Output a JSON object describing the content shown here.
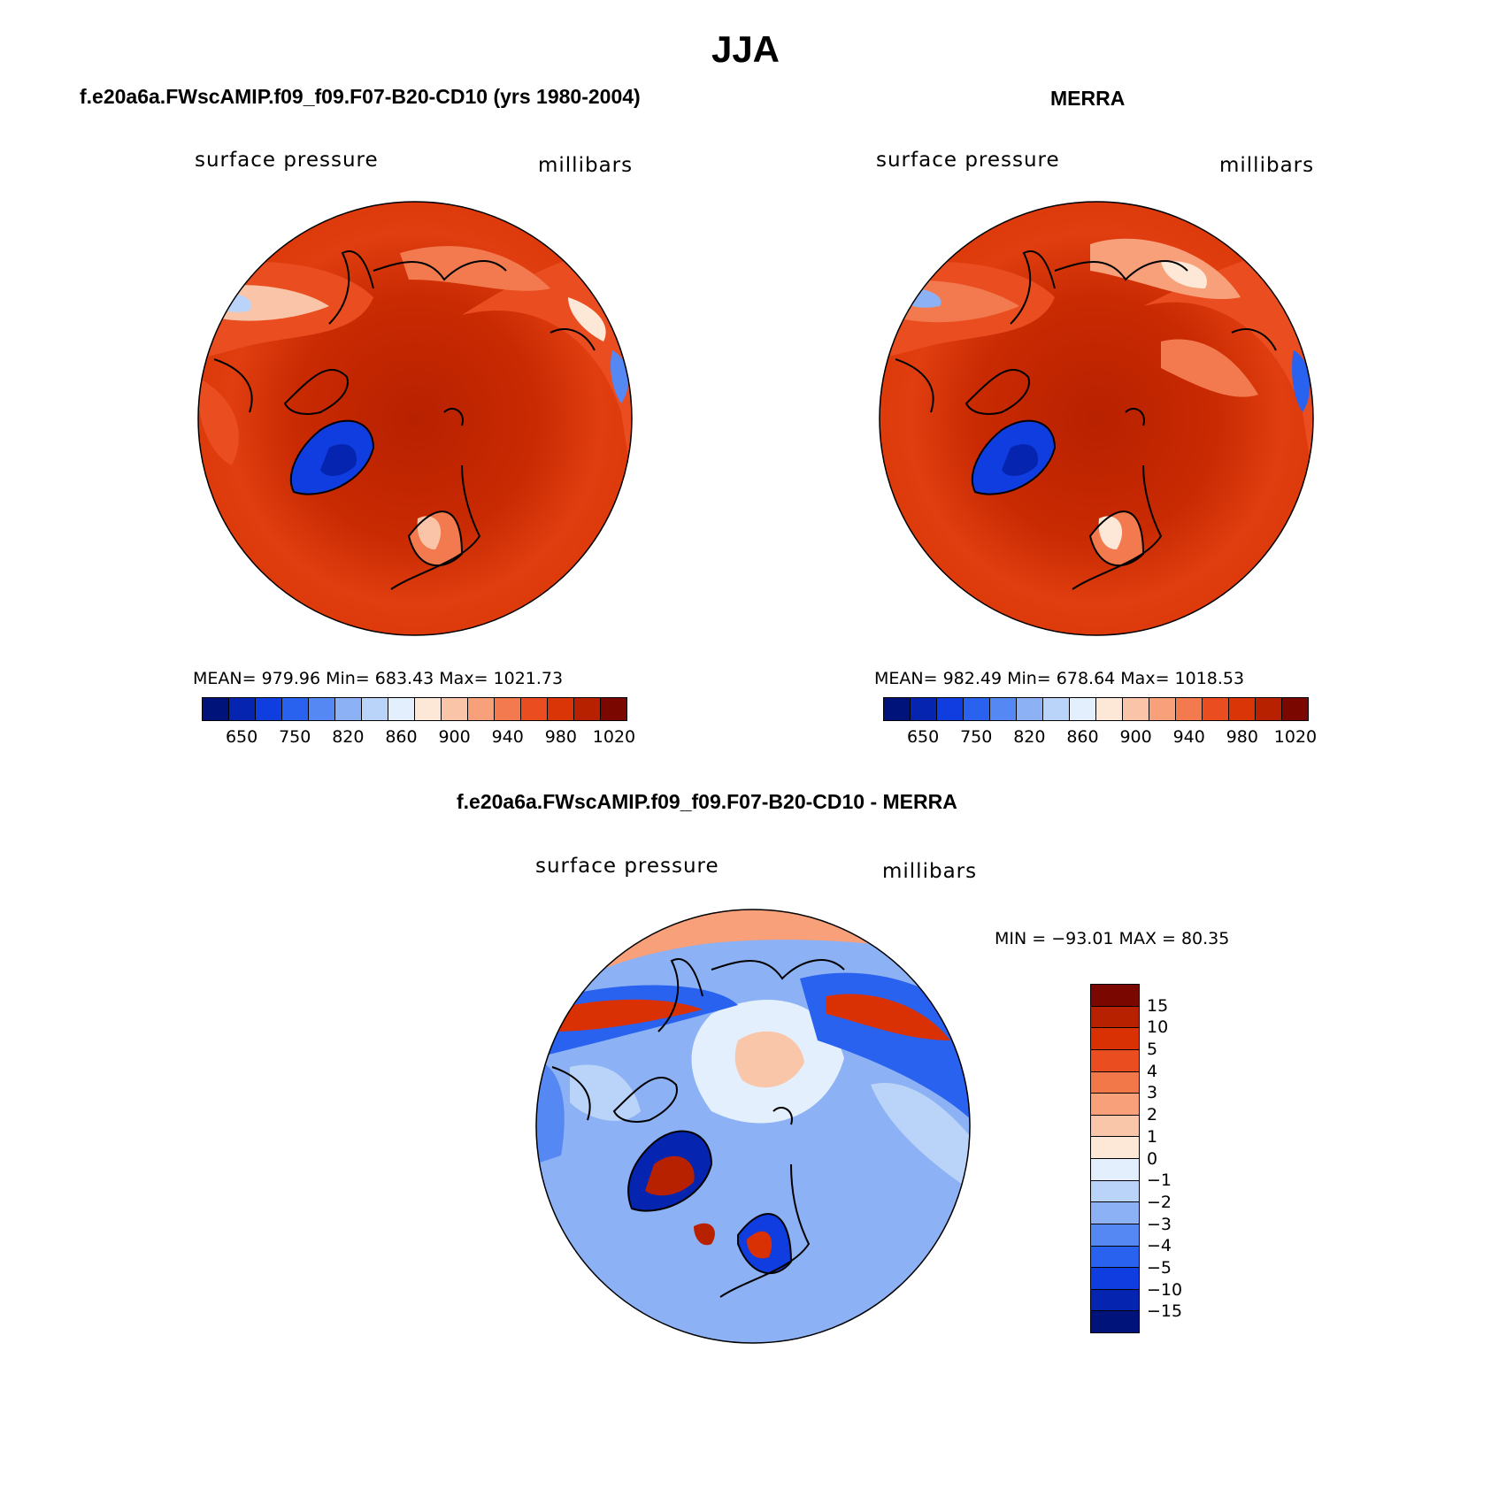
{
  "figure": {
    "season_title": "JJA",
    "difference_title": "f.e20a6a.FWscAMIP.f09_f09.F07-B20-CD10 - MERRA"
  },
  "panels": [
    {
      "case_title": "f.e20a6a.FWscAMIP.f09_f09.F07-B20-CD10 (yrs 1980-2004)",
      "variable": "surface pressure",
      "units": "millibars",
      "stats": "MEAN= 979.96   Min= 683.43   Max= 1021.73",
      "colorbar_ticks": [
        "650",
        "750",
        "820",
        "860",
        "900",
        "940",
        "980",
        "1020"
      ]
    },
    {
      "case_title": "MERRA",
      "variable": "surface pressure",
      "units": "millibars",
      "stats": "MEAN= 982.49   Min= 678.64   Max= 1018.53",
      "colorbar_ticks": [
        "650",
        "750",
        "820",
        "860",
        "900",
        "940",
        "980",
        "1020"
      ]
    },
    {
      "variable": "surface pressure",
      "units": "millibars",
      "stats": "MIN = −93.01  MAX =   80.35",
      "colorbar_ticks": [
        "15",
        "10",
        "5",
        "4",
        "3",
        "2",
        "1",
        "0",
        "−1",
        "−2",
        "−3",
        "−4",
        "−5",
        "−10",
        "−15"
      ]
    }
  ],
  "colors": {
    "abs_scale": [
      "#00137a",
      "#0524b0",
      "#0f3de0",
      "#2a62f0",
      "#5588f2",
      "#8cb1f5",
      "#bad3f8",
      "#e3effc",
      "#fde7d6",
      "#fac4a8",
      "#f7a07a",
      "#f27a4e",
      "#ea4d20",
      "#da3506",
      "#b82100",
      "#7a0700"
    ],
    "diff_scale": [
      "#7a0700",
      "#b82100",
      "#d93004",
      "#ea4d20",
      "#f2784a",
      "#f7a07a",
      "#fac6aa",
      "#fde7d6",
      "#e3effc",
      "#bad3f8",
      "#8cb1f5",
      "#5588f2",
      "#2a62f0",
      "#0f3de0",
      "#0524b0",
      "#00137a"
    ]
  }
}
